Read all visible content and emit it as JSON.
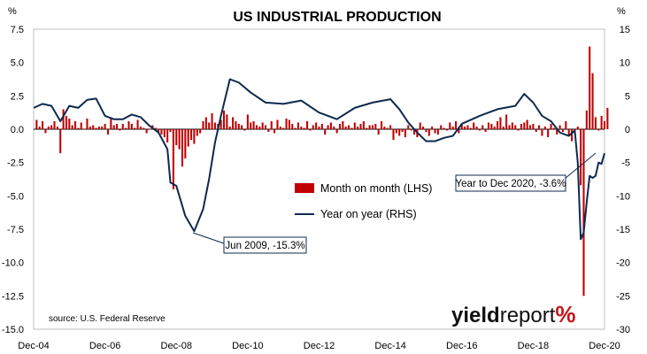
{
  "chart_data": {
    "type": "bar+line",
    "title": "US INDUSTRIAL PRODUCTION",
    "y_left_unit": "%",
    "y_right_unit": "%",
    "y_left_range": [
      -15.0,
      7.5
    ],
    "y_right_range": [
      -30,
      15
    ],
    "y_left_ticks": [
      "7.5",
      "5.0",
      "2.5",
      "0.0",
      "-2.5",
      "-5.0",
      "-7.5",
      "-10.0",
      "-12.5",
      "-15.0"
    ],
    "y_right_ticks": [
      "15",
      "10",
      "5",
      "0",
      "-5",
      "-10",
      "-15",
      "-20",
      "-25",
      "-30"
    ],
    "x_range": [
      "2004-12",
      "2020-12"
    ],
    "x_ticks": [
      "Dec-04",
      "Dec-06",
      "Dec-08",
      "Dec-10",
      "Dec-12",
      "Dec-14",
      "Dec-16",
      "Dec-18",
      "Dec-20"
    ],
    "grid": false,
    "legend": [
      {
        "name": "Month on month (LHS)",
        "kind": "bar",
        "color": "#c00000"
      },
      {
        "name": "Year on year (RHS)",
        "kind": "line",
        "color": "#0d2a4f"
      }
    ],
    "series": [
      {
        "name": "Month on month (LHS)",
        "type": "bar",
        "axis": "left",
        "start": "2005-01",
        "values": [
          0.7,
          0.2,
          0.6,
          -0.3,
          0.2,
          0.3,
          0.6,
          0.2,
          -1.8,
          1.5,
          1.0,
          0.8,
          0.3,
          0.6,
          0.1,
          0.5,
          0.0,
          0.8,
          0.2,
          0.3,
          0.1,
          0.2,
          0.2,
          0.4,
          -0.4,
          0.9,
          0.3,
          0.4,
          -0.1,
          0.4,
          0.1,
          0.6,
          0.4,
          0.1,
          0.7,
          0.2,
          0.1,
          -0.3,
          0.0,
          0.3,
          0.1,
          -0.2,
          -0.4,
          -0.6,
          -1.0,
          -0.2,
          -4.5,
          -1.2,
          -1.5,
          -2.8,
          -2.2,
          -1.3,
          -0.8,
          -1.1,
          -0.5,
          -0.3,
          0.6,
          0.9,
          0.5,
          1.2,
          0.5,
          0.4,
          0.7,
          1.4,
          1.1,
          0.2,
          0.9,
          0.6,
          0.4,
          0.3,
          -0.1,
          1.1,
          0.5,
          0.6,
          0.3,
          0.2,
          0.5,
          0.3,
          -0.2,
          0.6,
          -0.3,
          0.7,
          0.2,
          0.1,
          0.8,
          0.7,
          0.4,
          0.1,
          0.5,
          0.2,
          0.1,
          0.6,
          -0.1,
          0.3,
          0.5,
          0.2,
          0.4,
          -0.4,
          0.3,
          0.5,
          0.2,
          -0.3,
          0.4,
          0.6,
          0.2,
          0.3,
          0.1,
          0.5,
          0.2,
          0.4,
          0.6,
          0.1,
          0.3,
          0.3,
          0.4,
          -0.4,
          0.6,
          0.2,
          0.1,
          0.3,
          -0.8,
          -0.3,
          -0.5,
          -0.2,
          -0.6,
          0.3,
          -0.1,
          -0.4,
          -0.6,
          0.5,
          0.2,
          -0.2,
          -0.5,
          0.2,
          -0.3,
          -0.4,
          0.3,
          0.1,
          -0.1,
          0.5,
          0.2,
          0.6,
          -0.3,
          0.4,
          0.2,
          0.3,
          0.1,
          0.5,
          0.2,
          -0.1,
          0.3,
          -0.2,
          0.5,
          0.4,
          0.2,
          0.6,
          0.9,
          0.2,
          1.1,
          0.3,
          0.5,
          0.3,
          -0.1,
          0.4,
          0.5,
          0.7,
          0.3,
          0.4,
          -0.2,
          0.3,
          -0.5,
          0.2,
          -0.6,
          0.4,
          0.1,
          -0.4,
          0.3,
          -0.2,
          0.6,
          -0.5,
          -0.9,
          -0.3,
          0.2,
          -4.2,
          -12.5,
          1.4,
          6.2,
          4.2,
          0.9,
          -0.1,
          1.0,
          0.6,
          1.6
        ]
      },
      {
        "name": "Year on year (RHS)",
        "type": "line",
        "axis": "right",
        "points": [
          [
            "2004-12",
            3.2
          ],
          [
            "2005-03",
            3.8
          ],
          [
            "2005-06",
            3.5
          ],
          [
            "2005-09",
            1.2
          ],
          [
            "2005-12",
            3.5
          ],
          [
            "2006-03",
            3.2
          ],
          [
            "2006-06",
            4.4
          ],
          [
            "2006-09",
            4.6
          ],
          [
            "2006-12",
            2.0
          ],
          [
            "2007-03",
            1.5
          ],
          [
            "2007-06",
            1.5
          ],
          [
            "2007-09",
            2.2
          ],
          [
            "2007-12",
            1.8
          ],
          [
            "2008-03",
            0.5
          ],
          [
            "2008-06",
            -0.5
          ],
          [
            "2008-09",
            -3.0
          ],
          [
            "2008-10",
            -8.0
          ],
          [
            "2008-12",
            -8.5
          ],
          [
            "2009-03",
            -13.0
          ],
          [
            "2009-06",
            -15.3
          ],
          [
            "2009-09",
            -12.0
          ],
          [
            "2009-11",
            -7.5
          ],
          [
            "2010-01",
            -2.0
          ],
          [
            "2010-03",
            2.0
          ],
          [
            "2010-06",
            7.5
          ],
          [
            "2010-09",
            7.0
          ],
          [
            "2011-01",
            5.5
          ],
          [
            "2011-06",
            4.0
          ],
          [
            "2011-12",
            3.8
          ],
          [
            "2012-06",
            4.3
          ],
          [
            "2012-12",
            2.5
          ],
          [
            "2013-06",
            1.5
          ],
          [
            "2013-12",
            3.2
          ],
          [
            "2014-06",
            4.0
          ],
          [
            "2014-12",
            4.5
          ],
          [
            "2015-03",
            3.0
          ],
          [
            "2015-06",
            1.0
          ],
          [
            "2015-09",
            -0.5
          ],
          [
            "2015-12",
            -1.8
          ],
          [
            "2016-03",
            -1.8
          ],
          [
            "2016-06",
            -1.3
          ],
          [
            "2016-09",
            -1.0
          ],
          [
            "2016-12",
            0.8
          ],
          [
            "2017-06",
            2.0
          ],
          [
            "2017-12",
            3.0
          ],
          [
            "2018-06",
            3.5
          ],
          [
            "2018-09",
            5.3
          ],
          [
            "2018-12",
            4.0
          ],
          [
            "2019-03",
            2.0
          ],
          [
            "2019-06",
            1.2
          ],
          [
            "2019-09",
            -0.5
          ],
          [
            "2019-12",
            -1.0
          ],
          [
            "2020-02",
            -0.2
          ],
          [
            "2020-03",
            -5.0
          ],
          [
            "2020-04",
            -16.5
          ],
          [
            "2020-05",
            -15.5
          ],
          [
            "2020-06",
            -11.0
          ],
          [
            "2020-07",
            -7.0
          ],
          [
            "2020-08",
            -7.3
          ],
          [
            "2020-09",
            -7.0
          ],
          [
            "2020-10",
            -5.0
          ],
          [
            "2020-11",
            -5.2
          ],
          [
            "2020-12",
            -3.6
          ]
        ]
      }
    ],
    "annotations": [
      {
        "text": "Jun 2009, -15.3%",
        "date": "2009-06",
        "value": -15.3
      },
      {
        "text": "Year to Dec 2020, -3.6%",
        "date": "2020-12",
        "value": -3.6
      }
    ]
  },
  "source": "source: U.S. Federal Reserve",
  "logo": {
    "part1": "yield",
    "part2": "report",
    "part3": "%"
  }
}
